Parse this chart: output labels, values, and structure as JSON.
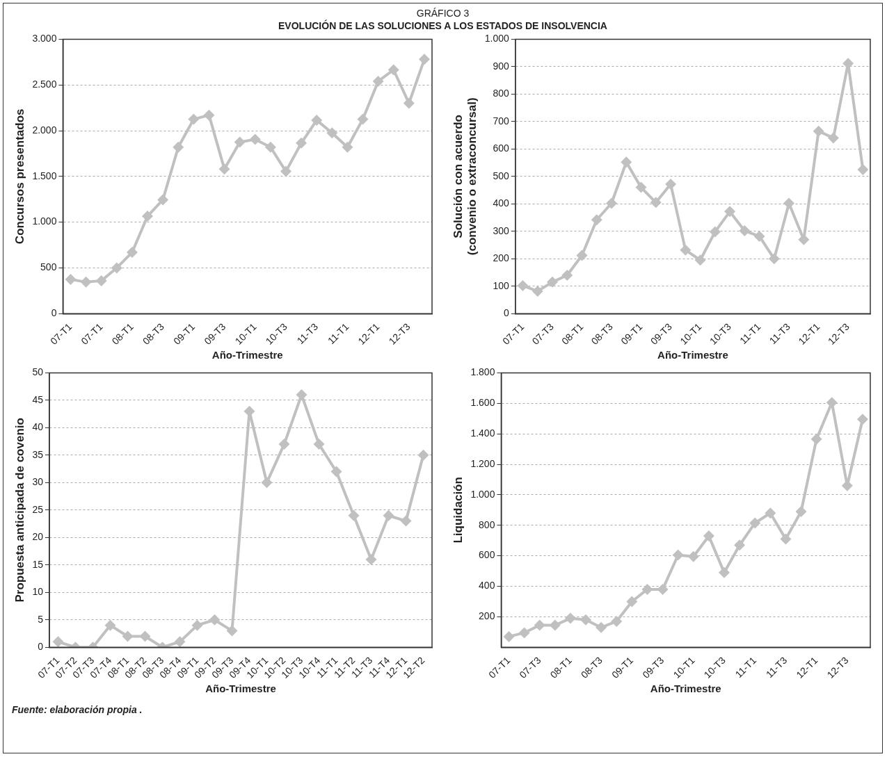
{
  "chart_data": [
    {
      "type": "line",
      "title": "GRÁFICO 3",
      "subtitle": "EVOLUCIÓN DE LAS SOLUCIONES A LOS ESTADOS DE INSOLVENCIA",
      "xlabel": "Año-Trimestre",
      "ylabel": "Concursos presentados",
      "color": "#c0c0c0",
      "marker": "diamond",
      "grid": "y",
      "legend": false,
      "categories": [
        "07-T1",
        null,
        "07-T1",
        null,
        "08-T1",
        null,
        "08-T3",
        null,
        "09-T1",
        null,
        "09-T3",
        null,
        "10-T1",
        null,
        "10-T3",
        null,
        "11-T3",
        null,
        "11-T1",
        null,
        "12-T1",
        null,
        "12-T3",
        null
      ],
      "values": [
        375,
        345,
        360,
        500,
        670,
        1065,
        1245,
        1820,
        2125,
        2170,
        1580,
        1875,
        1905,
        1820,
        1555,
        1865,
        2115,
        1975,
        1820,
        2125,
        2540,
        2665,
        2300,
        2780
      ],
      "ylim": [
        0,
        3000
      ],
      "yticks": [
        0,
        500,
        {
          "value": 1000,
          "label": "1.000"
        },
        {
          "value": 1500,
          "label": "1.500"
        },
        {
          "value": 2000,
          "label": "2.000"
        },
        {
          "value": 2500,
          "label": "2.500"
        },
        {
          "value": 3000,
          "label": "3.000"
        }
      ]
    },
    {
      "type": "line",
      "xlabel": "Año-Trimestre",
      "ylabel": "Solución con acuerdo\n(convenio o extraconcursal)",
      "color": "#c0c0c0",
      "marker": "diamond",
      "grid": "y",
      "legend": false,
      "categories": [
        "07-T1",
        null,
        "07-T3",
        null,
        "08-T1",
        null,
        "08-T3",
        null,
        "09-T1",
        null,
        "09-T3",
        null,
        "10-T1",
        null,
        "10-T3",
        null,
        "11-T1",
        null,
        "11-T3",
        null,
        "12-T1",
        null,
        "12-T3",
        null
      ],
      "values": [
        102,
        82,
        115,
        140,
        212,
        342,
        402,
        552,
        460,
        405,
        472,
        232,
        195,
        298,
        372,
        302,
        282,
        200,
        402,
        270,
        665,
        640,
        912,
        525
      ],
      "ylim": [
        0,
        1000
      ],
      "yticks": [
        0,
        100,
        200,
        300,
        400,
        500,
        600,
        700,
        800,
        900,
        {
          "value": 1000,
          "label": "1.000"
        }
      ]
    },
    {
      "type": "line",
      "xlabel": "Año-Trimestre",
      "ylabel": "Propuesta anticipada de covenio",
      "color": "#c0c0c0",
      "marker": "diamond",
      "grid": "y",
      "legend": false,
      "categories": [
        "07-T1",
        "07-T2",
        "07-T3",
        "07-T4",
        "08-T1",
        "08-T2",
        "08-T3",
        "08-T4",
        "09-T1",
        "09-T2",
        "09-T3",
        "09-T4",
        "10-T1",
        "10-T2",
        "10-T3",
        "10-T4",
        "11-T1",
        "11-T2",
        "11-T3",
        "11-T4",
        "12-T1",
        "12-T2"
      ],
      "values": [
        1,
        0,
        0,
        4,
        2,
        2,
        0,
        1,
        4,
        5,
        3,
        43,
        30,
        37,
        46,
        37,
        32,
        24,
        16,
        24,
        23,
        35
      ],
      "ylim": [
        0,
        50
      ],
      "yticks": [
        0,
        5,
        10,
        15,
        20,
        25,
        30,
        35,
        40,
        45,
        50
      ]
    },
    {
      "type": "line",
      "xlabel": "Año-Trimestre",
      "ylabel": "Liquidación",
      "color": "#c0c0c0",
      "marker": "diamond",
      "grid": "y",
      "legend": false,
      "categories": [
        "07-T1",
        null,
        "07-T3",
        null,
        "08-T1",
        null,
        "08-T3",
        null,
        "09-T1",
        null,
        "09-T3",
        null,
        "10-T1",
        null,
        "10-T3",
        null,
        "11-T1",
        null,
        "11-T3",
        null,
        "12-T1",
        null,
        "12-T3",
        null
      ],
      "values": [
        70,
        95,
        145,
        145,
        190,
        180,
        130,
        170,
        300,
        380,
        380,
        605,
        595,
        730,
        490,
        670,
        815,
        880,
        710,
        890,
        1365,
        1605,
        1060,
        1495
      ],
      "ylim": [
        0,
        1800
      ],
      "yticks": [
        {
          "value": 200,
          "label": "200"
        },
        {
          "value": 400,
          "label": "400"
        },
        {
          "value": 600,
          "label": "600"
        },
        {
          "value": 800,
          "label": "800"
        },
        {
          "value": 1000,
          "label": "1.000"
        },
        {
          "value": 1200,
          "label": "1.200"
        },
        {
          "value": 1400,
          "label": "1.400"
        },
        {
          "value": 1600,
          "label": "1.600"
        },
        {
          "value": 1800,
          "label": "1.800"
        }
      ],
      "annotations": [
        "Fuente: elaboración propia ."
      ]
    }
  ]
}
